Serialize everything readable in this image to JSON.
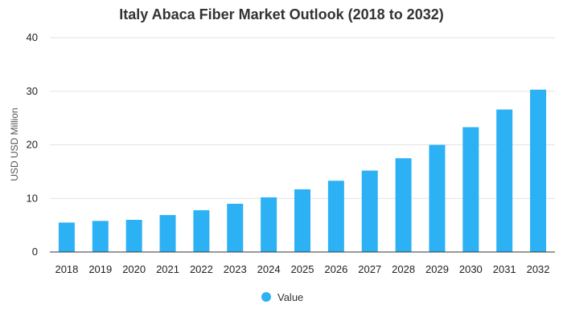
{
  "chart_data": {
    "type": "bar",
    "title": "Italy Abaca Fiber Market Outlook (2018 to 2032)",
    "xlabel": "",
    "ylabel": "USD USD Million",
    "categories": [
      "2018",
      "2019",
      "2020",
      "2021",
      "2022",
      "2023",
      "2024",
      "2025",
      "2026",
      "2027",
      "2028",
      "2029",
      "2030",
      "2031",
      "2032"
    ],
    "series": [
      {
        "name": "Value",
        "values": [
          5.5,
          5.8,
          6.0,
          6.9,
          7.8,
          9.0,
          10.2,
          11.7,
          13.3,
          15.2,
          17.5,
          20.0,
          23.3,
          26.6,
          30.3
        ]
      }
    ],
    "ylim": [
      0,
      40
    ],
    "yticks": [
      0,
      10,
      20,
      30,
      40
    ],
    "grid": true,
    "legend_position": "bottom-center",
    "bar_color": "#2db1f5"
  }
}
